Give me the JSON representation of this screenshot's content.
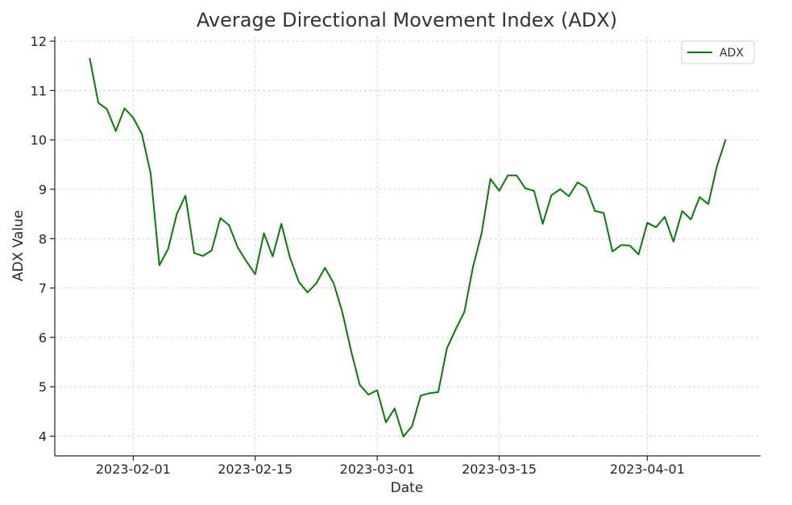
{
  "chart_data": {
    "type": "line",
    "title": "Average Directional Movement Index (ADX)",
    "xlabel": "Date",
    "ylabel": "ADX Value",
    "x_ticks": [
      "2023-02-01",
      "2023-02-15",
      "2023-03-01",
      "2023-03-15",
      "2023-04-01"
    ],
    "y_ticks": [
      4,
      5,
      6,
      7,
      8,
      9,
      10,
      11,
      12
    ],
    "xlim": [
      "2023-01-23",
      "2023-04-14"
    ],
    "ylim": [
      3.6,
      12.1
    ],
    "grid": true,
    "legend_position": "top-right",
    "series": [
      {
        "name": "ADX",
        "color": "#008000",
        "x": [
          "2023-01-27",
          "2023-01-28",
          "2023-01-29",
          "2023-01-30",
          "2023-01-31",
          "2023-02-01",
          "2023-02-02",
          "2023-02-03",
          "2023-02-04",
          "2023-02-05",
          "2023-02-06",
          "2023-02-07",
          "2023-02-08",
          "2023-02-09",
          "2023-02-10",
          "2023-02-11",
          "2023-02-12",
          "2023-02-13",
          "2023-02-14",
          "2023-02-15",
          "2023-02-16",
          "2023-02-17",
          "2023-02-18",
          "2023-02-19",
          "2023-02-20",
          "2023-02-21",
          "2023-02-22",
          "2023-02-23",
          "2023-02-24",
          "2023-02-25",
          "2023-02-26",
          "2023-02-27",
          "2023-02-28",
          "2023-03-01",
          "2023-03-02",
          "2023-03-03",
          "2023-03-04",
          "2023-03-05",
          "2023-03-06",
          "2023-03-07",
          "2023-03-08",
          "2023-03-09",
          "2023-03-10",
          "2023-03-11",
          "2023-03-12",
          "2023-03-13",
          "2023-03-14",
          "2023-03-15",
          "2023-03-16",
          "2023-03-17",
          "2023-03-18",
          "2023-03-19",
          "2023-03-20",
          "2023-03-21",
          "2023-03-22",
          "2023-03-23",
          "2023-03-24",
          "2023-03-25",
          "2023-03-26",
          "2023-03-27",
          "2023-03-28",
          "2023-03-29",
          "2023-03-30",
          "2023-03-31",
          "2023-04-01",
          "2023-04-02",
          "2023-04-03",
          "2023-04-04",
          "2023-04-05",
          "2023-04-06",
          "2023-04-07",
          "2023-04-08",
          "2023-04-09",
          "2023-04-10"
        ],
        "values": [
          11.66,
          10.75,
          10.62,
          10.18,
          10.64,
          10.45,
          10.12,
          9.32,
          7.46,
          7.79,
          8.5,
          8.87,
          7.71,
          7.65,
          7.76,
          8.42,
          8.27,
          7.82,
          7.54,
          7.28,
          8.11,
          7.64,
          8.3,
          7.61,
          7.13,
          6.91,
          7.09,
          7.41,
          7.1,
          6.51,
          5.73,
          5.04,
          4.84,
          4.93,
          4.28,
          4.56,
          3.99,
          4.2,
          4.82,
          4.87,
          4.89,
          5.78,
          6.16,
          6.51,
          7.43,
          8.12,
          9.21,
          8.97,
          9.28,
          9.28,
          9.02,
          8.97,
          8.3,
          8.88,
          9.0,
          8.86,
          9.14,
          9.03,
          8.56,
          8.52,
          7.74,
          7.87,
          7.86,
          7.68,
          8.32,
          8.23,
          8.44,
          7.94,
          8.56,
          8.39,
          8.84,
          8.7,
          9.47,
          10.01
        ]
      }
    ]
  }
}
